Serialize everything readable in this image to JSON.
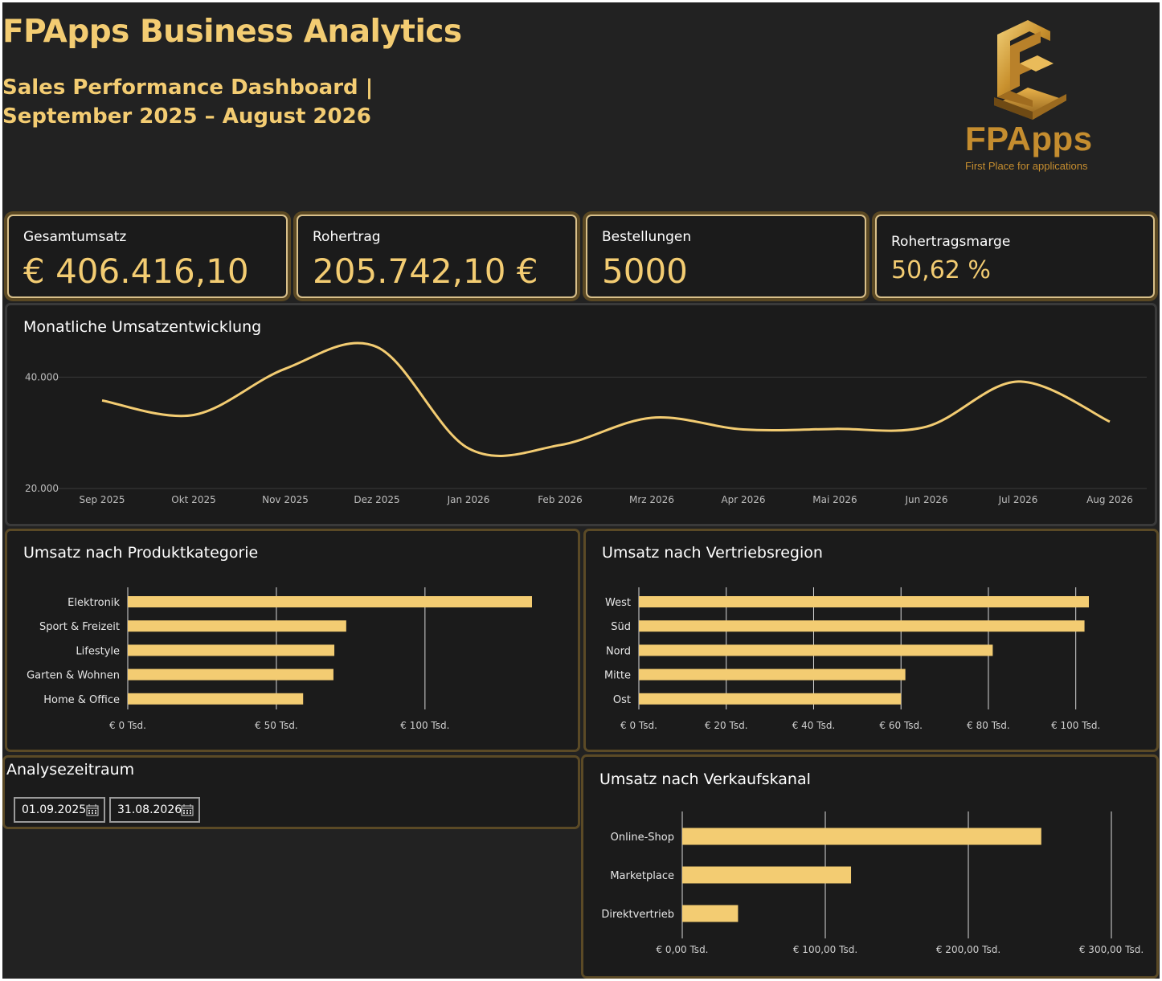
{
  "header": {
    "title": "FPApps Business Analytics",
    "subtitle": "Sales Performance Dashboard | September 2025 – August 2026"
  },
  "logo": {
    "icon": "fpapps-logo-icon",
    "wordmark": "FPApps",
    "tagline": "First Place for applications"
  },
  "kpis": [
    {
      "label": "Gesamtumsatz",
      "value": "€ 406.416,10"
    },
    {
      "label": "Rohertrag",
      "value": "205.742,10 €"
    },
    {
      "label": "Bestellungen",
      "value": "5000"
    },
    {
      "label": "Rohertragsmarge",
      "value": "50,62 %"
    }
  ],
  "filter": {
    "title": "Analysezeitraum",
    "start": "01.09.2025",
    "end": "31.08.2026",
    "icon": "calendar-icon"
  },
  "colors": {
    "accent": "#f3cc72",
    "background": "#222222",
    "panel": "#1b1b1b",
    "border": "#5b4a26"
  },
  "chart_data": [
    {
      "type": "line",
      "title": "Monatliche Umsatzentwicklung",
      "x": [
        "Sep 2025",
        "Okt 2025",
        "Nov 2025",
        "Dez 2025",
        "Jan 2026",
        "Feb 2026",
        "Mrz 2026",
        "Apr 2026",
        "Mai 2026",
        "Jun 2026",
        "Jul 2026",
        "Aug 2026"
      ],
      "y": [
        35800,
        33200,
        41500,
        45400,
        27200,
        27800,
        32700,
        30600,
        30700,
        31100,
        39200,
        32000
      ],
      "ylim": [
        20000,
        50000
      ],
      "yticks": [
        "20.000",
        "40.000"
      ],
      "ytick_values": [
        20000,
        40000
      ],
      "grid": true
    },
    {
      "type": "bar",
      "orientation": "horizontal",
      "title": "Umsatz nach Produktkategorie",
      "categories": [
        "Elektronik",
        "Sport & Freizeit",
        "Lifestyle",
        "Garten & Wohnen",
        "Home & Office"
      ],
      "values": [
        136,
        73.5,
        69.5,
        69.2,
        59
      ],
      "unit": "Tsd. €",
      "xlim": [
        0,
        136
      ],
      "xticks": [
        "€ 0 Tsd.",
        "€ 50 Tsd.",
        "€ 100 Tsd."
      ],
      "xtick_values": [
        0,
        50,
        100
      ],
      "grid": true
    },
    {
      "type": "bar",
      "orientation": "horizontal",
      "title": "Umsatz nach Vertriebsregion",
      "categories": [
        "West",
        "Süd",
        "Nord",
        "Mitte",
        "Ost"
      ],
      "values": [
        103,
        102,
        81,
        61,
        60
      ],
      "unit": "Tsd. €",
      "xlim": [
        0,
        103
      ],
      "xticks": [
        "€ 0 Tsd.",
        "€ 20 Tsd.",
        "€ 40 Tsd.",
        "€ 60 Tsd.",
        "€ 80 Tsd.",
        "€ 100 Tsd."
      ],
      "xtick_values": [
        0,
        20,
        40,
        60,
        80,
        100
      ],
      "grid": true
    },
    {
      "type": "bar",
      "orientation": "horizontal",
      "title": "Umsatz nach Verkaufskanal",
      "categories": [
        "Online-Shop",
        "Marketplace",
        "Direktvertrieb"
      ],
      "values": [
        251,
        118,
        39
      ],
      "unit": "Tsd. €",
      "xlim": [
        0,
        300
      ],
      "xticks": [
        "€ 0,00 Tsd.",
        "€ 100,00 Tsd.",
        "€ 200,00 Tsd.",
        "€ 300,00 Tsd."
      ],
      "xtick_values": [
        0,
        100,
        200,
        300
      ],
      "grid": true
    }
  ]
}
